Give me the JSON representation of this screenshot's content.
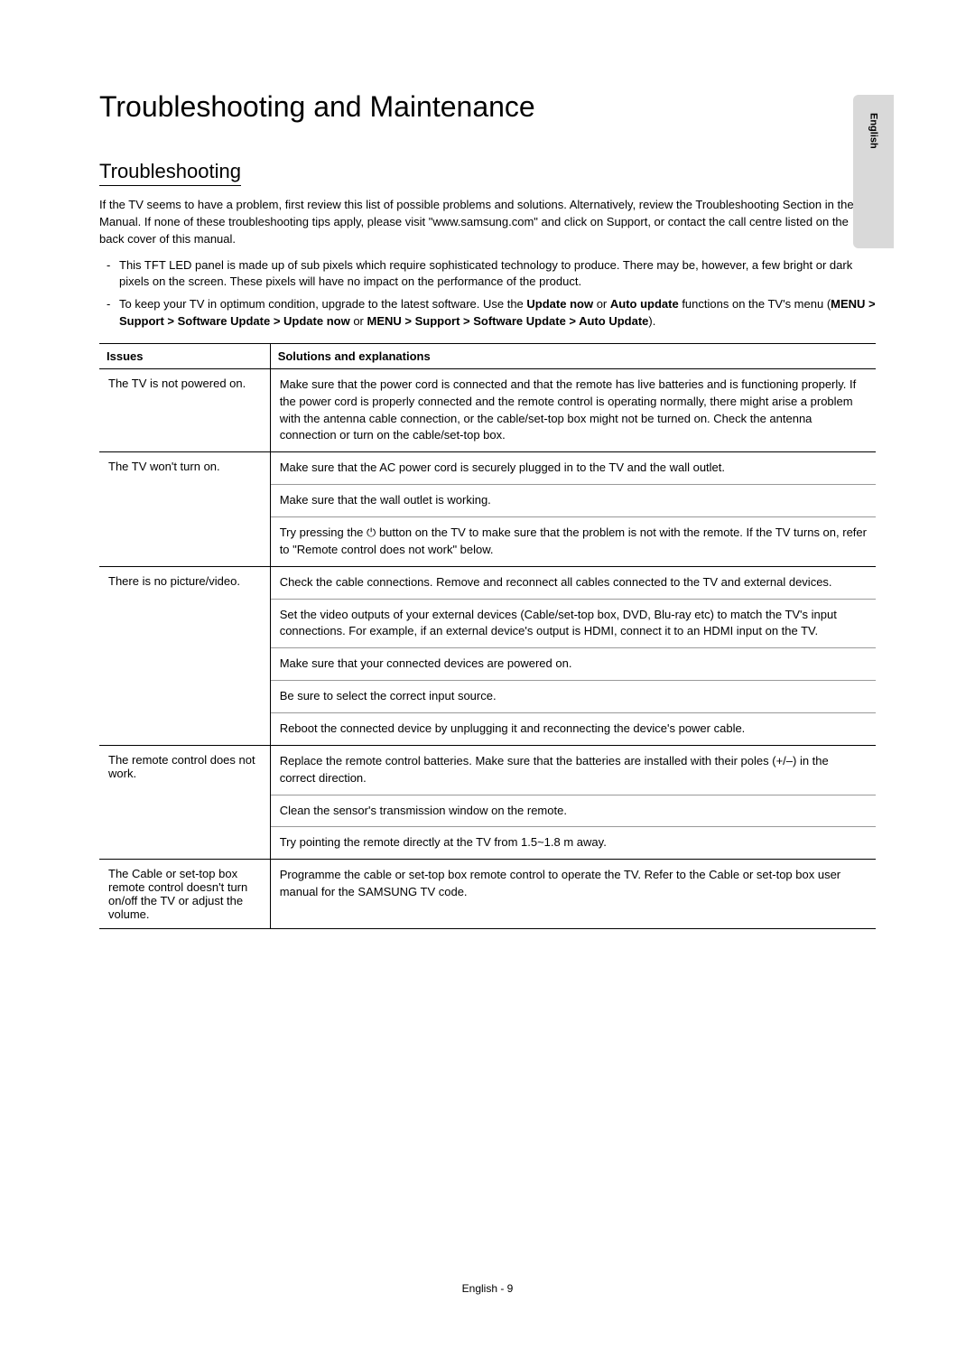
{
  "language_tab": "English",
  "title": "Troubleshooting and Maintenance",
  "section_heading": "Troubleshooting",
  "intro": "If the TV seems to have a problem, first review this list of possible problems and solutions. Alternatively, review the Troubleshooting Section in the e-Manual. If none of these troubleshooting tips apply, please visit \"www.samsung.com\" and click on Support, or contact the call centre listed on the back cover of this manual.",
  "bullets": [
    {
      "text": "This TFT LED panel is made up of sub pixels which require sophisticated technology to produce. There may be, however, a few bright or dark pixels on the screen. These pixels will have no impact on the performance of the product."
    },
    {
      "prefix": "To keep your TV in optimum condition, upgrade to the latest software. Use the ",
      "bold1": "Update now",
      "mid1": " or ",
      "bold2": "Auto update",
      "mid2": " functions on the TV's menu (",
      "path1": "MENU > Support > Software Update > Update now",
      "mid3": " or ",
      "path2": "MENU > Support > Software Update > Auto Update",
      "suffix": ")."
    }
  ],
  "table": {
    "header_issues": "Issues",
    "header_solutions": "Solutions and explanations",
    "rows": [
      {
        "issue": "The TV is not powered on.",
        "solutions": [
          "Make sure that the power cord is connected and that the remote has live batteries and is functioning properly. If the power cord is properly connected and the remote control is operating normally, there might arise a problem with the antenna cable connection, or the cable/set-top box might not be turned on. Check the antenna connection or turn on the cable/set-top box."
        ]
      },
      {
        "issue": "The TV won't turn on.",
        "solutions": [
          "Make sure that the AC power cord is securely plugged in to the TV and the wall outlet.",
          "Make sure that the wall outlet is working.",
          {
            "pre": "Try pressing the ",
            "icon": "⏻",
            "post": " button on the TV to make sure that the problem is not with the remote. If the TV turns on, refer to \"Remote control does not work\" below."
          }
        ]
      },
      {
        "issue": "There is no picture/video.",
        "solutions": [
          "Check the cable connections. Remove and reconnect all cables connected to the TV and external devices.",
          "Set the video outputs of your external devices (Cable/set-top box, DVD, Blu-ray etc) to match the TV's input connections. For example, if an external device's output is HDMI, connect it to an HDMI input on the TV.",
          "Make sure that your connected devices are powered on.",
          "Be sure to select the correct input source.",
          "Reboot the connected device by unplugging it and reconnecting the device's power cable."
        ]
      },
      {
        "issue": "The remote control does not work.",
        "solutions": [
          "Replace the remote control batteries. Make sure that the batteries are installed with their poles (+/–) in the correct direction.",
          "Clean the sensor's transmission window on the remote.",
          "Try pointing the remote directly at the TV from 1.5~1.8 m away."
        ]
      },
      {
        "issue": "The Cable or set-top box remote control doesn't turn on/off the TV or adjust the volume.",
        "solutions": [
          "Programme the cable or set-top box remote control to operate the TV. Refer to the Cable or set-top box user manual for the SAMSUNG TV code."
        ]
      }
    ]
  },
  "footer": "English - 9"
}
